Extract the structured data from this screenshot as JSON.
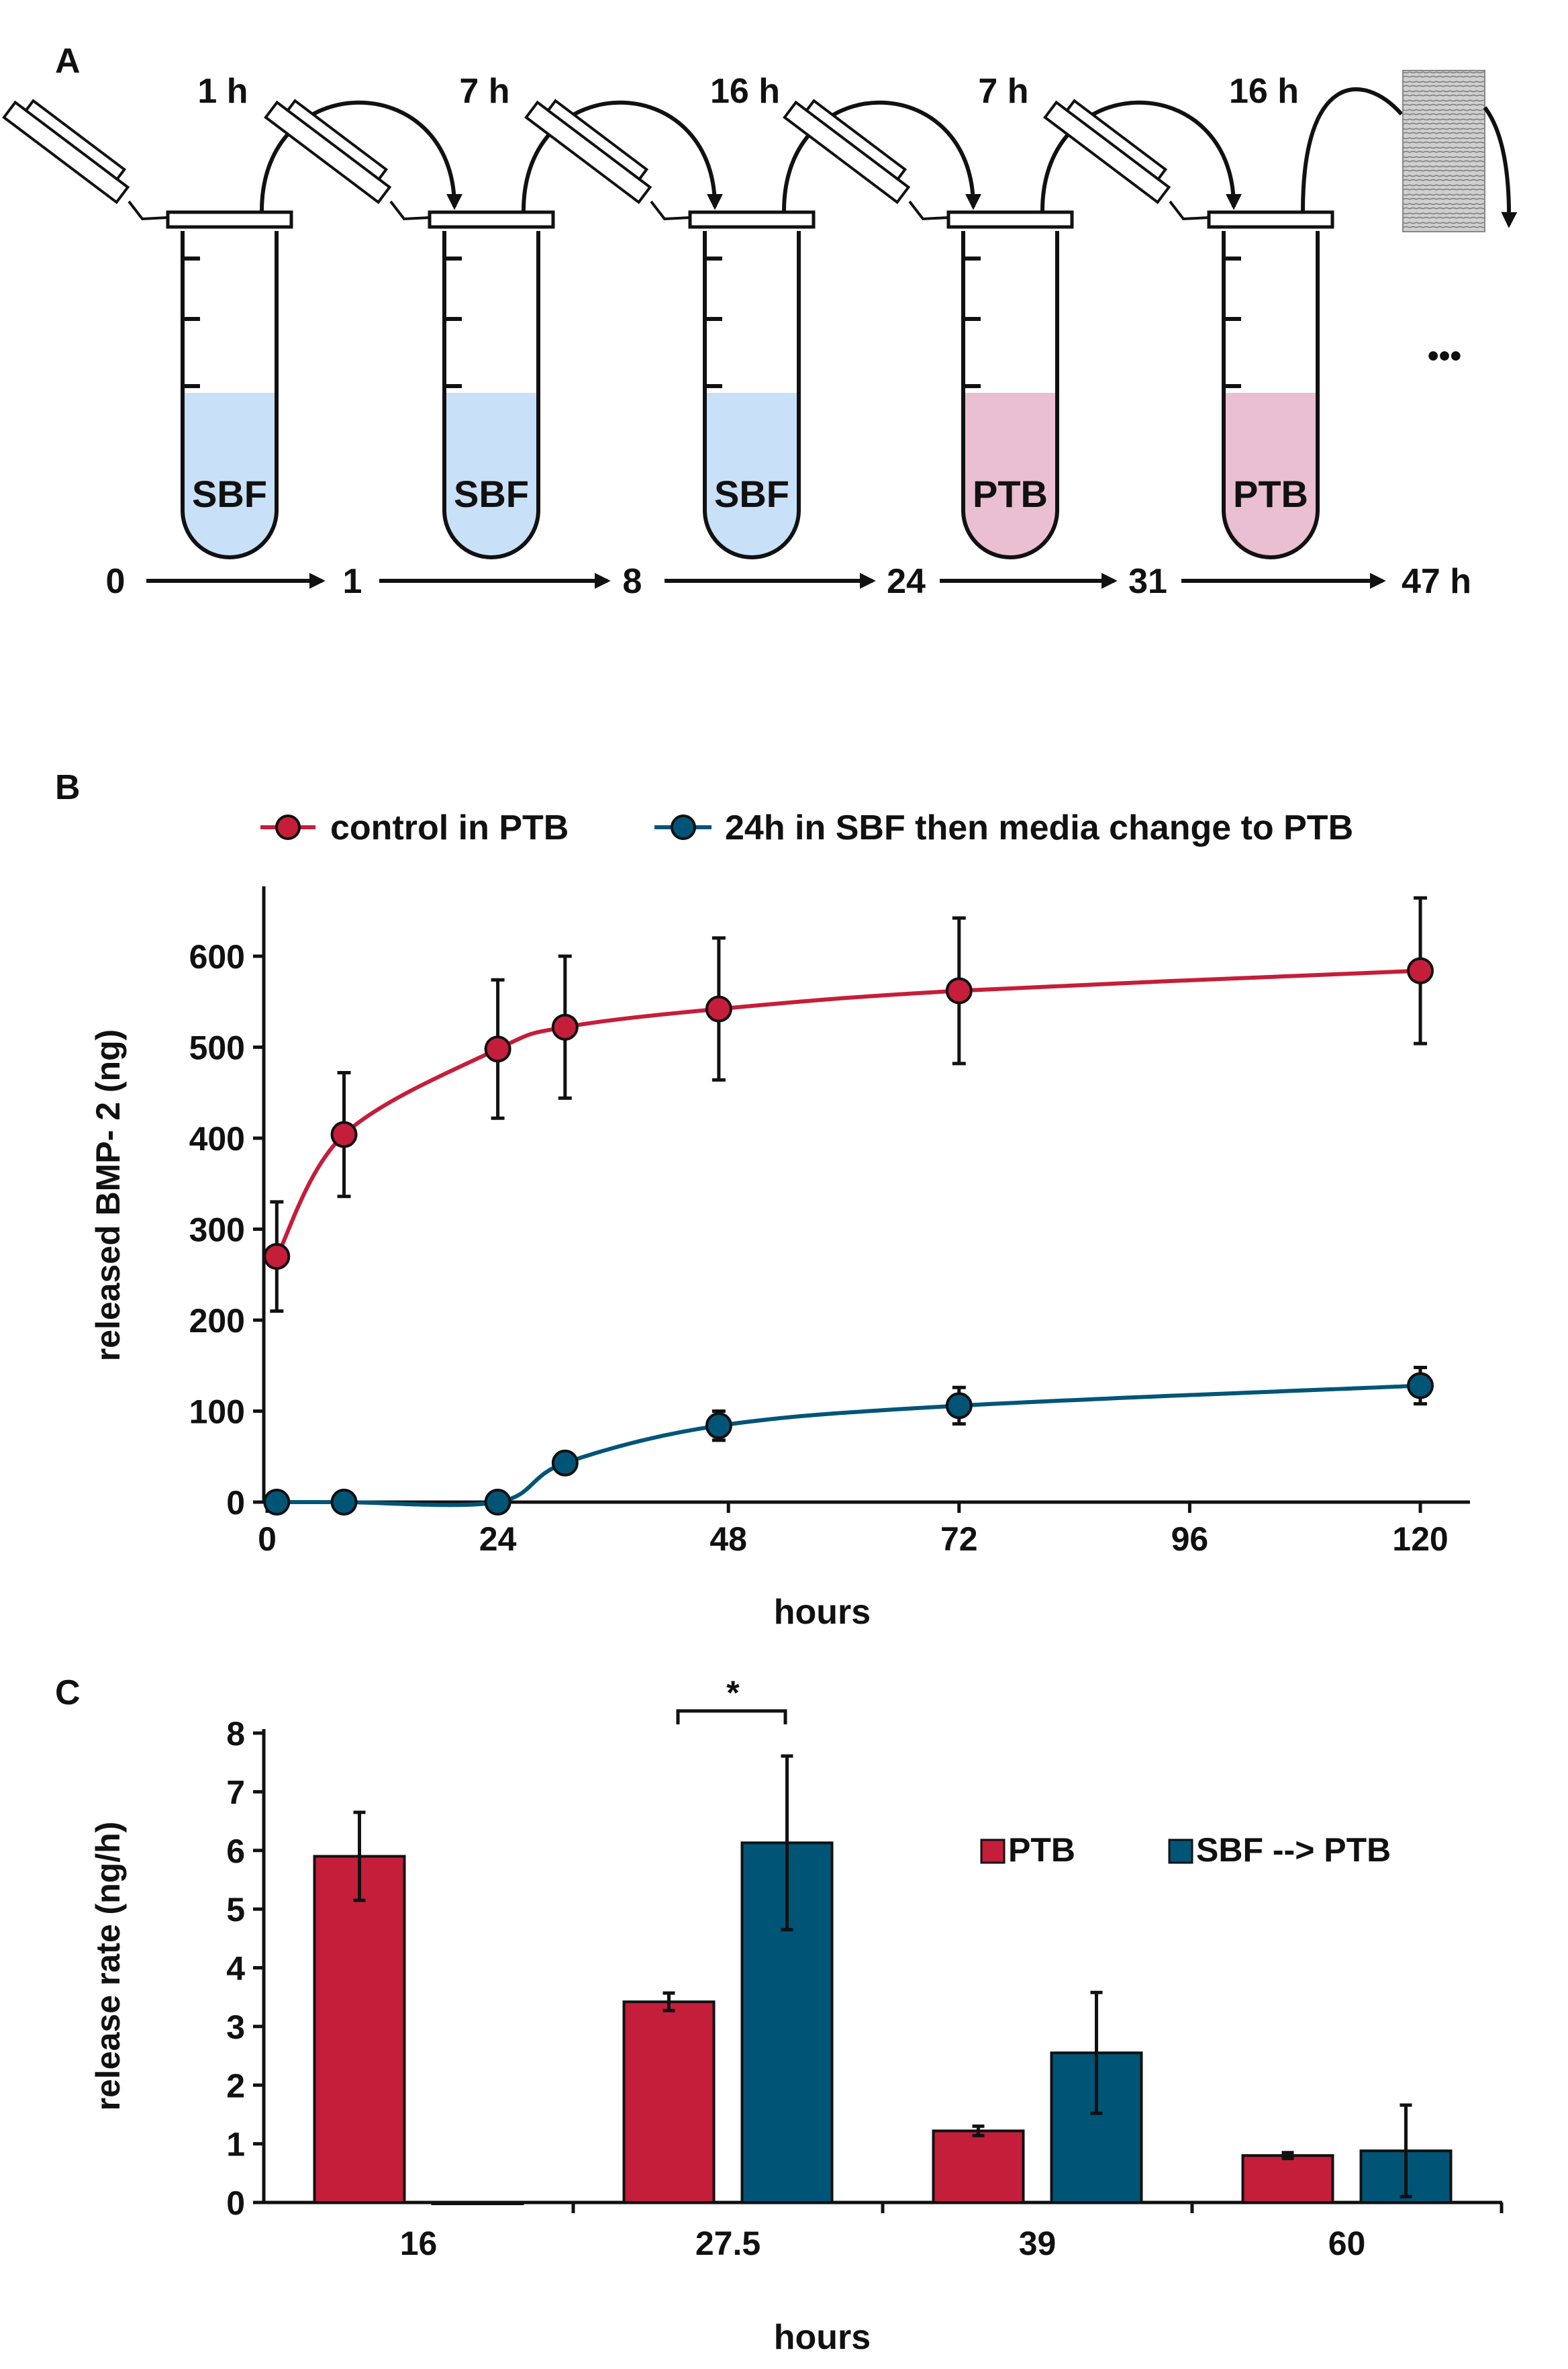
{
  "panel_a": {
    "label": "A",
    "durations": [
      "1 h",
      "7 h",
      "16 h",
      "7 h",
      "16 h"
    ],
    "media": [
      "SBF",
      "SBF",
      "SBF",
      "PTB",
      "PTB"
    ],
    "timeline": [
      "0",
      "1",
      "8",
      "24",
      "31",
      "47 h"
    ],
    "ellipsis": "•••",
    "colors": {
      "sbf": "#c9e1f8",
      "ptb": "#eabfd1"
    }
  },
  "chart_data": [
    {
      "panel": "B",
      "type": "line",
      "title": "",
      "xlabel": "hours",
      "ylabel": "released BMP- 2 (ng)",
      "xlim": [
        0,
        130
      ],
      "ylim": [
        0,
        650
      ],
      "xticks": [
        0,
        24,
        48,
        72,
        96,
        120
      ],
      "yticks": [
        0,
        100,
        200,
        300,
        400,
        500,
        600
      ],
      "legend_position": "top",
      "series": [
        {
          "name": "control in PTB",
          "color": "#c41e3a",
          "x": [
            1,
            8,
            24,
            31,
            47,
            72,
            120
          ],
          "y": [
            270,
            404,
            498,
            522,
            542,
            562,
            584
          ],
          "err": [
            60,
            68,
            76,
            78,
            78,
            80,
            80
          ]
        },
        {
          "name": "24h in SBF then media change to PTB",
          "color": "#005577",
          "x": [
            1,
            8,
            24,
            31,
            47,
            72,
            120
          ],
          "y": [
            0,
            0,
            0,
            43,
            84,
            106,
            128
          ],
          "err": [
            0,
            0,
            0,
            5,
            16,
            20,
            20
          ]
        }
      ]
    },
    {
      "panel": "C",
      "type": "bar",
      "title": "",
      "xlabel": "hours",
      "ylabel": "release rate (ng/h)",
      "ylim": [
        0,
        8
      ],
      "yticks": [
        0,
        1,
        2,
        3,
        4,
        5,
        6,
        7,
        8
      ],
      "categories": [
        "16",
        "27.5",
        "39",
        "60"
      ],
      "legend_position": "right",
      "significance": {
        "category": "27.5",
        "label": "*"
      },
      "series": [
        {
          "name": "PTB",
          "color": "#c41e3a",
          "values": [
            5.9,
            3.42,
            1.22,
            0.8
          ],
          "err": [
            0.75,
            0.15,
            0.08,
            0.05
          ]
        },
        {
          "name": "SBF --> PTB",
          "color": "#005577",
          "values": [
            0.0,
            6.13,
            2.55,
            0.88
          ],
          "err": [
            0.0,
            1.48,
            1.03,
            0.78
          ]
        }
      ]
    }
  ]
}
